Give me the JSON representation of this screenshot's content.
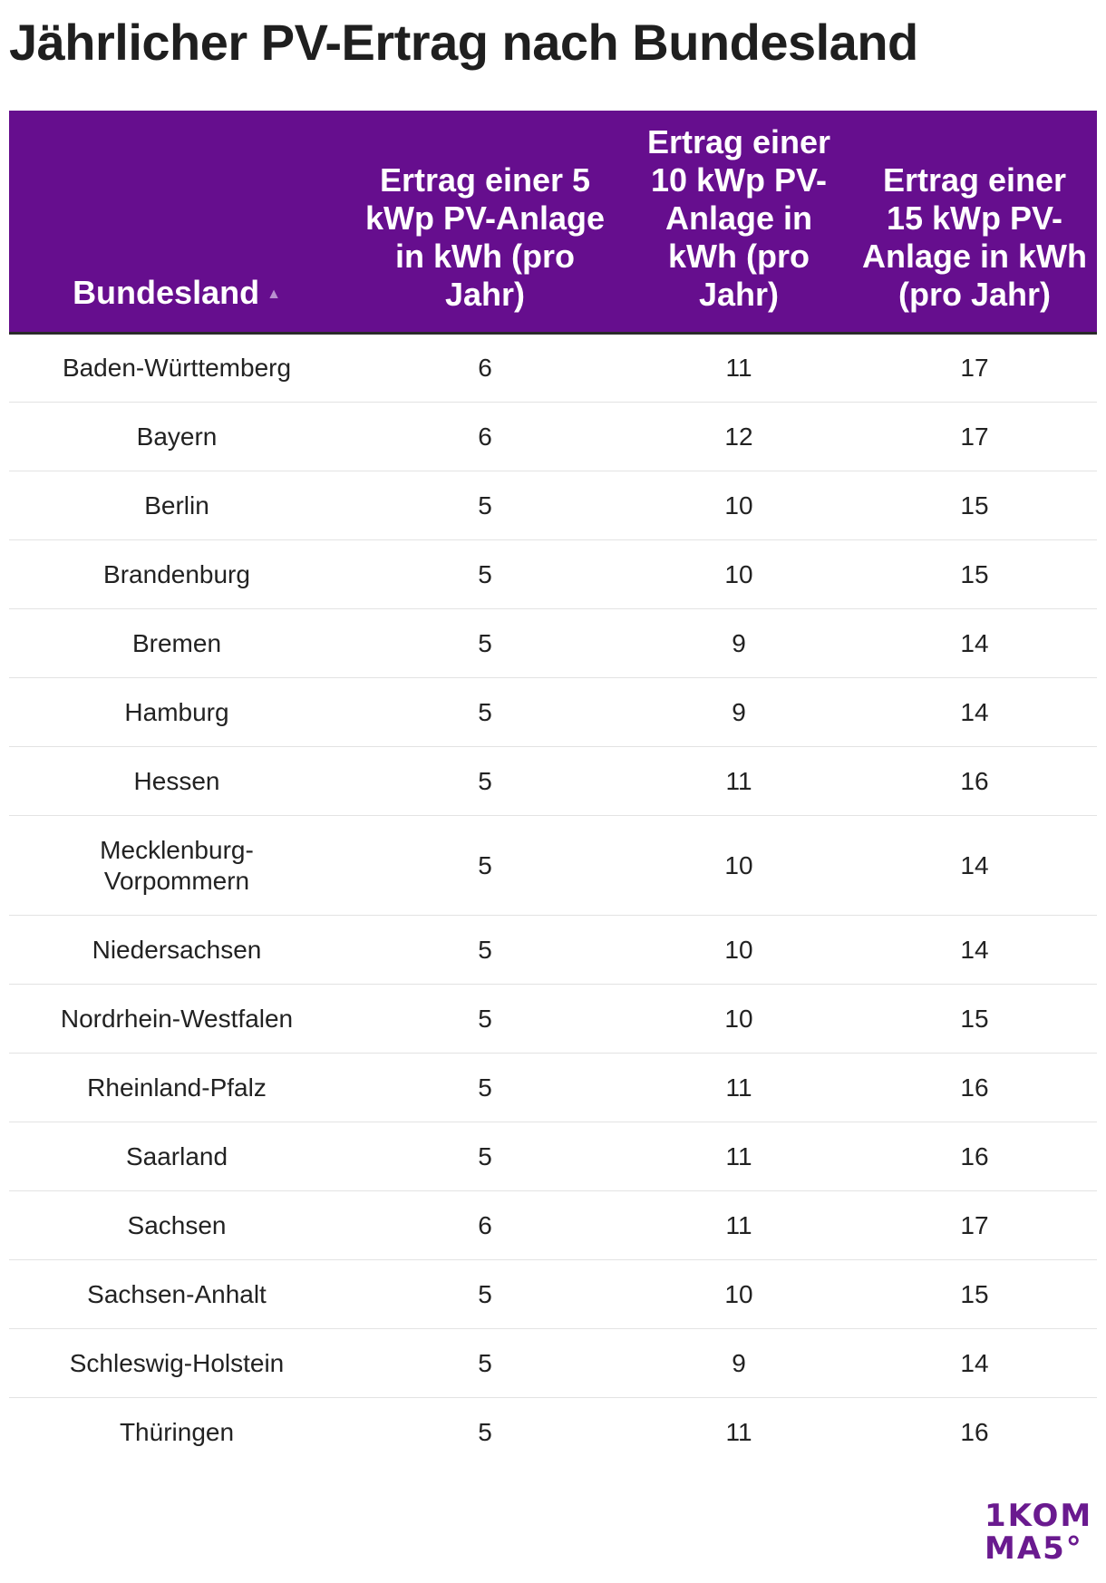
{
  "title": "Jährlicher PV-Ertrag nach Bundesland",
  "table": {
    "headers": [
      "Bundesland",
      "Ertrag einer 5 kWp PV-Anlage in kWh (pro Jahr)",
      "Ertrag einer 10 kWp PV-Anlage in kWh (pro Jahr)",
      "Ertrag einer 15 kWp PV-Anlage in kWh (pro Jahr)"
    ],
    "sort_icon": "sort-ascending-icon",
    "rows": [
      [
        "Baden-Württemberg",
        "6",
        "11",
        "17"
      ],
      [
        "Bayern",
        "6",
        "12",
        "17"
      ],
      [
        "Berlin",
        "5",
        "10",
        "15"
      ],
      [
        "Brandenburg",
        "5",
        "10",
        "15"
      ],
      [
        "Bremen",
        "5",
        "9",
        "14"
      ],
      [
        "Hamburg",
        "5",
        "9",
        "14"
      ],
      [
        "Hessen",
        "5",
        "11",
        "16"
      ],
      [
        "Mecklenburg-Vorpommern",
        "5",
        "10",
        "14"
      ],
      [
        "Niedersachsen",
        "5",
        "10",
        "14"
      ],
      [
        "Nordrhein-Westfalen",
        "5",
        "10",
        "15"
      ],
      [
        "Rheinland-Pfalz",
        "5",
        "11",
        "16"
      ],
      [
        "Saarland",
        "5",
        "11",
        "16"
      ],
      [
        "Sachsen",
        "6",
        "11",
        "17"
      ],
      [
        "Sachsen-Anhalt",
        "5",
        "10",
        "15"
      ],
      [
        "Schleswig-Holstein",
        "5",
        "9",
        "14"
      ],
      [
        "Thüringen",
        "5",
        "11",
        "16"
      ]
    ]
  },
  "logo": {
    "line1": "1KOM",
    "line2": "MA5°"
  },
  "colors": {
    "header_bg": "#660e8e",
    "logo": "#6a1a8f"
  }
}
